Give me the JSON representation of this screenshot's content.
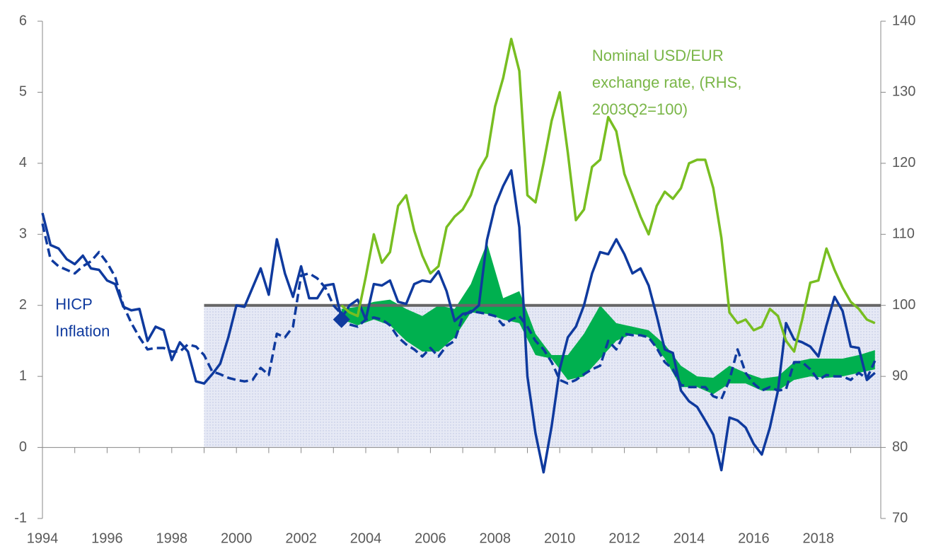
{
  "chart_data": {
    "type": "line",
    "xlim": [
      1994,
      2019.93
    ],
    "xticks": [
      1994,
      1996,
      1998,
      2000,
      2002,
      2004,
      2006,
      2008,
      2010,
      2012,
      2014,
      2016,
      2018
    ],
    "x_minor_ticks": [
      1995,
      1997,
      1999,
      2001,
      2003,
      2005,
      2007,
      2009,
      2011,
      2013,
      2015,
      2017,
      2019
    ],
    "ylim": [
      -1,
      6
    ],
    "yticks": [
      -1,
      0,
      1,
      2,
      3,
      4,
      5,
      6
    ],
    "y2lim": [
      70,
      140
    ],
    "y2ticks": [
      70,
      80,
      90,
      100,
      110,
      120,
      130,
      140
    ],
    "reference_line": {
      "y": 2,
      "x_start": 1999,
      "color": "#666666",
      "shade_color": "#dde1f2"
    },
    "marker": {
      "x": 2003.25,
      "y": 1.8,
      "color": "#0f3a9e"
    },
    "band": {
      "color": "#00b04f",
      "x": [
        2003.25,
        2003.75,
        2004.25,
        2004.75,
        2005.25,
        2005.75,
        2006.25,
        2006.75,
        2007.25,
        2007.75,
        2008.25,
        2008.75,
        2009.25,
        2009.75,
        2010.25,
        2010.75,
        2011.25,
        2011.75,
        2012.25,
        2012.75,
        2013.25,
        2013.75,
        2014.25,
        2014.75,
        2015.25,
        2015.75,
        2016.25,
        2016.75,
        2017.25,
        2017.75,
        2018.25,
        2018.75,
        2019.25,
        2019.75
      ],
      "low": [
        1.8,
        1.72,
        1.8,
        1.72,
        1.5,
        1.35,
        1.35,
        1.55,
        1.9,
        1.88,
        1.8,
        1.75,
        1.3,
        1.25,
        0.95,
        1.0,
        1.25,
        1.5,
        1.6,
        1.55,
        1.25,
        0.85,
        0.85,
        0.75,
        0.9,
        0.9,
        0.8,
        0.8,
        0.95,
        1.0,
        0.98,
        1.0,
        1.05,
        1.1
      ],
      "high": [
        1.95,
        1.98,
        2.05,
        2.08,
        1.95,
        1.85,
        2.0,
        1.95,
        2.3,
        2.88,
        2.1,
        2.2,
        1.6,
        1.3,
        1.3,
        1.6,
        2.0,
        1.75,
        1.7,
        1.65,
        1.45,
        1.15,
        1.0,
        0.98,
        1.15,
        1.05,
        0.97,
        1.0,
        1.2,
        1.25,
        1.25,
        1.25,
        1.3,
        1.37
      ]
    },
    "series": [
      {
        "color": "#0f3a9e",
        "dash": false,
        "x": [
          1994,
          1994.25,
          1994.5,
          1994.75,
          1995,
          1995.25,
          1995.5,
          1995.75,
          1996,
          1996.25,
          1996.5,
          1996.75,
          1997,
          1997.25,
          1997.5,
          1997.75,
          1998,
          1998.25,
          1998.5,
          1998.75,
          1999,
          1999.25,
          1999.5,
          1999.75,
          2000,
          2000.25,
          2000.5,
          2000.75,
          2001,
          2001.25,
          2001.5,
          2001.75,
          2002,
          2002.25,
          2002.5,
          2002.75,
          2003,
          2003.25,
          2003.5,
          2003.75,
          2004,
          2004.25,
          2004.5,
          2004.75,
          2005,
          2005.25,
          2005.5,
          2005.75,
          2006,
          2006.25,
          2006.5,
          2006.75,
          2007,
          2007.25,
          2007.5,
          2007.75,
          2008,
          2008.25,
          2008.5,
          2008.75,
          2009,
          2009.25,
          2009.5,
          2009.75,
          2010,
          2010.25,
          2010.5,
          2010.75,
          2011,
          2011.25,
          2011.5,
          2011.75,
          2012,
          2012.25,
          2012.5,
          2012.75,
          2013,
          2013.25,
          2013.5,
          2013.75,
          2014,
          2014.25,
          2014.5,
          2014.75,
          2015,
          2015.25,
          2015.5,
          2015.75,
          2016,
          2016.25,
          2016.5,
          2016.75,
          2017,
          2017.25,
          2017.5,
          2017.75,
          2018,
          2018.25,
          2018.5,
          2018.75,
          2019,
          2019.25,
          2019.5,
          2019.75
        ],
        "values": [
          3.3,
          2.85,
          2.8,
          2.65,
          2.58,
          2.7,
          2.52,
          2.5,
          2.35,
          2.3,
          1.98,
          1.93,
          1.95,
          1.5,
          1.7,
          1.65,
          1.23,
          1.48,
          1.35,
          0.93,
          0.9,
          1.03,
          1.18,
          1.55,
          2.0,
          1.98,
          2.25,
          2.52,
          2.15,
          2.93,
          2.45,
          2.12,
          2.55,
          2.1,
          2.1,
          2.28,
          2.3,
          1.82,
          2.0,
          2.08,
          1.8,
          2.3,
          2.28,
          2.35,
          2.05,
          2.02,
          2.3,
          2.35,
          2.33,
          2.48,
          2.2,
          1.78,
          1.88,
          1.9,
          2.0,
          2.92,
          3.4,
          3.68,
          3.9,
          3.1,
          1.0,
          0.2,
          -0.35,
          0.3,
          1.1,
          1.55,
          1.7,
          2.0,
          2.45,
          2.75,
          2.72,
          2.93,
          2.72,
          2.45,
          2.52,
          2.28,
          1.85,
          1.38,
          1.33,
          0.8,
          0.65,
          0.57,
          0.38,
          0.18,
          -0.32,
          0.42,
          0.38,
          0.28,
          0.05,
          -0.1,
          0.28,
          0.8,
          1.75,
          1.52,
          1.48,
          1.42,
          1.28,
          1.72,
          2.12,
          1.92,
          1.42,
          1.4,
          0.95,
          1.05
        ]
      },
      {
        "color": "#0f3a9e",
        "dash": true,
        "x": [
          1994,
          1994.25,
          1994.5,
          1994.75,
          1995,
          1995.25,
          1995.5,
          1995.75,
          1996,
          1996.25,
          1996.5,
          1996.75,
          1997,
          1997.25,
          1997.5,
          1997.75,
          1998,
          1998.25,
          1998.5,
          1998.75,
          1999,
          1999.25,
          1999.5,
          1999.75,
          2000,
          2000.25,
          2000.5,
          2000.75,
          2001,
          2001.25,
          2001.5,
          2001.75,
          2002,
          2002.25,
          2002.5,
          2002.75,
          2003,
          2003.25,
          2003.5,
          2003.75,
          2004,
          2004.25,
          2004.5,
          2004.75,
          2005,
          2005.25,
          2005.5,
          2005.75,
          2006,
          2006.25,
          2006.5,
          2006.75,
          2007,
          2007.25,
          2007.5,
          2007.75,
          2008,
          2008.25,
          2008.5,
          2008.75,
          2009,
          2009.25,
          2009.5,
          2009.75,
          2010,
          2010.25,
          2010.5,
          2010.75,
          2011,
          2011.25,
          2011.5,
          2011.75,
          2012,
          2012.25,
          2012.5,
          2012.75,
          2013,
          2013.25,
          2013.5,
          2013.75,
          2014,
          2014.25,
          2014.5,
          2014.75,
          2015,
          2015.25,
          2015.5,
          2015.75,
          2016,
          2016.25,
          2016.5,
          2016.75,
          2017,
          2017.25,
          2017.5,
          2017.75,
          2018,
          2018.25,
          2018.5,
          2018.75,
          2019,
          2019.25,
          2019.5,
          2019.75
        ],
        "values": [
          3.15,
          2.65,
          2.55,
          2.5,
          2.45,
          2.55,
          2.62,
          2.75,
          2.6,
          2.4,
          2.0,
          1.75,
          1.55,
          1.38,
          1.4,
          1.4,
          1.35,
          1.35,
          1.45,
          1.42,
          1.3,
          1.07,
          1.03,
          0.98,
          0.95,
          0.93,
          0.95,
          1.12,
          1.02,
          1.6,
          1.55,
          1.7,
          2.42,
          2.45,
          2.38,
          2.25,
          2.0,
          1.88,
          1.73,
          1.7,
          1.8,
          1.83,
          1.8,
          1.72,
          1.55,
          1.45,
          1.38,
          1.28,
          1.4,
          1.28,
          1.43,
          1.5,
          1.85,
          1.92,
          1.9,
          1.88,
          1.85,
          1.72,
          1.8,
          1.85,
          1.7,
          1.5,
          1.38,
          1.2,
          0.95,
          0.9,
          0.95,
          1.03,
          1.1,
          1.15,
          1.5,
          1.38,
          1.6,
          1.58,
          1.58,
          1.55,
          1.4,
          1.2,
          1.1,
          0.88,
          0.85,
          0.85,
          0.85,
          0.72,
          0.68,
          0.95,
          1.38,
          1.05,
          0.9,
          0.8,
          0.85,
          0.8,
          0.82,
          1.2,
          1.2,
          1.1,
          0.95,
          1.02,
          1.0,
          1.0,
          0.95,
          1.05,
          0.97,
          1.22
        ]
      },
      {
        "color": "#78be21",
        "dash": false,
        "axis": "y2",
        "x": [
          2003.25,
          2003.5,
          2003.75,
          2004,
          2004.25,
          2004.5,
          2004.75,
          2005,
          2005.25,
          2005.5,
          2005.75,
          2006,
          2006.25,
          2006.5,
          2006.75,
          2007,
          2007.25,
          2007.5,
          2007.75,
          2008,
          2008.25,
          2008.5,
          2008.75,
          2009,
          2009.25,
          2009.5,
          2009.75,
          2010,
          2010.25,
          2010.5,
          2010.75,
          2011,
          2011.25,
          2011.5,
          2011.75,
          2012,
          2012.25,
          2012.5,
          2012.75,
          2013,
          2013.25,
          2013.5,
          2013.75,
          2014,
          2014.25,
          2014.5,
          2014.75,
          2015,
          2015.25,
          2015.5,
          2015.75,
          2016,
          2016.25,
          2016.5,
          2016.75,
          2017,
          2017.25,
          2017.5,
          2017.75,
          2018,
          2018.25,
          2018.5,
          2018.75,
          2019,
          2019.25,
          2019.5,
          2019.75
        ],
        "values": [
          100,
          99,
          98.5,
          104,
          110,
          106,
          107.5,
          114,
          115.5,
          110.5,
          107,
          104.5,
          105.5,
          111,
          112.5,
          113.5,
          115.5,
          119,
          121,
          128,
          132,
          137.5,
          133,
          115.5,
          114.5,
          120,
          126,
          130,
          121.5,
          112,
          113.5,
          119.5,
          120.5,
          126.5,
          124.5,
          118.5,
          115.5,
          112.5,
          110,
          114,
          116,
          115,
          116.5,
          120,
          120.5,
          120.5,
          116.5,
          109.5,
          99,
          97.5,
          98,
          96.5,
          97,
          99.5,
          98.5,
          95,
          93.5,
          98,
          103.2,
          103.5,
          108,
          105,
          102.5,
          100.5,
          99.5,
          98,
          97.5
        ]
      }
    ],
    "annotations": [
      {
        "lines": [
          "HICP",
          "Inflation"
        ],
        "color": "#0f3a9e",
        "x": 1994.4,
        "y": 2.0
      },
      {
        "lines": [
          "Nominal USD/EUR",
          "exchange rate, (RHS,",
          "2003Q2=100)"
        ],
        "color": "#7ab648",
        "x": 2011.0,
        "y": 5.5
      }
    ]
  }
}
